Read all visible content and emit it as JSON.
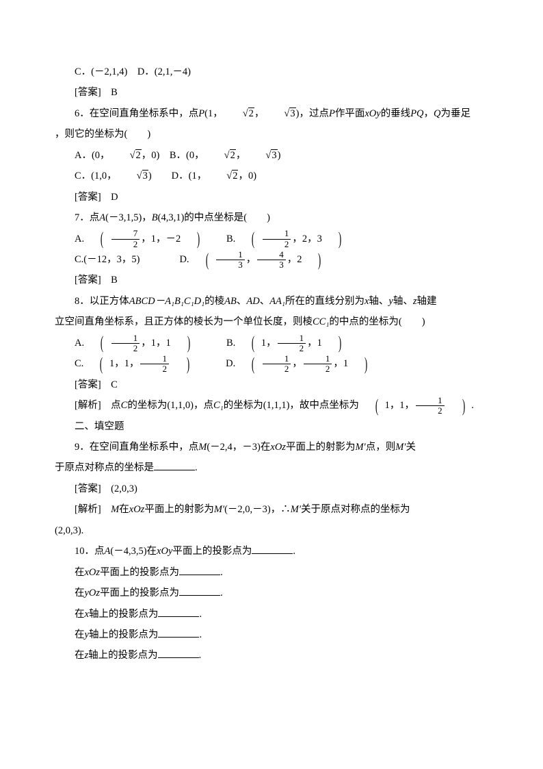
{
  "lines": {
    "l1": "C．(－2,1,4)　D．(2,1,－4)",
    "l2": "[答案]　B",
    "q6_stem_a": "6．在空间直角坐标系中，点",
    "q6_P": "P",
    "q6_stem_b": "(1，",
    "q6_sqrt2": "2",
    "q6_stem_c": "，",
    "q6_sqrt3": "3",
    "q6_stem_d": ")，过点",
    "q6_stem_e": "作平面",
    "q6_xoy": "xOy",
    "q6_stem_f": "的垂线",
    "q6_PQ": "PQ",
    "q6_stem_g": "，",
    "q6_Q": "Q",
    "q6_stem_h": "为垂足",
    "q6_tail": "，则它的坐标为(　　)",
    "q6_optA_pre": "A．(0，",
    "q6_optA_mid": "，0)　B．(0，",
    "q6_optA_mid2": "，",
    "q6_optA_end": ")",
    "q6_optC_pre": "C．(1,0，",
    "q6_optC_mid": ")　　D．(1，",
    "q6_optC_end": "，0)",
    "q6_ans": "[答案]　D",
    "q7_stem_a": "7．点",
    "q7_A": "A",
    "q7_stem_b": "(－3,1,5)，",
    "q7_B": "B",
    "q7_stem_c": "(4,3,1)的中点坐标是(　　)",
    "q7_A_pre": "A.",
    "q7_A_f1n": "7",
    "q7_A_f1d": "2",
    "q7_A_mid": "，1，－2",
    "q7_A_b": "　　B.",
    "q7_B_f1n": "1",
    "q7_B_f1d": "2",
    "q7_B_mid": "，2，3",
    "q7_C_pre": "C.(－12，3，5)　　　　D.",
    "q7_D_f1n": "1",
    "q7_D_f1d": "3",
    "q7_D_mid": "，",
    "q7_D_f2n": "4",
    "q7_D_f2d": "3",
    "q7_D_end": "，2",
    "q7_ans": "[答案]　B",
    "q8_stem_a": "8．以正方体",
    "q8_cube": "ABCD－A₁B₁C₁D₁",
    "q8_stem_b": "的棱",
    "q8_AB": "AB",
    "q8_sep": "、",
    "q8_AD": "AD",
    "q8_AA1": "AA₁",
    "q8_stem_c": "所在的直线分别为",
    "q8_x": "x",
    "q8_stem_d": "轴、",
    "q8_y": "y",
    "q8_stem_e": "轴、",
    "q8_z": "z",
    "q8_stem_f": "轴建",
    "q8_line2a": "立空间直角坐标系，且正方体的棱长为一个单位长度，则棱",
    "q8_CC1": "CC₁",
    "q8_line2b": "的中点的坐标为(　　)",
    "q8_A_pre": "A.",
    "q8_A_f1n": "1",
    "q8_A_f1d": "2",
    "q8_A_mid": "，1，1",
    "q8_B_pre": "　　　B.",
    "q8_B_mid1": "1，",
    "q8_B_f1n": "1",
    "q8_B_f1d": "2",
    "q8_B_mid2": "，1",
    "q8_C_pre": "C.",
    "q8_C_mid1": "1，1，",
    "q8_C_f1n": "1",
    "q8_C_f1d": "2",
    "q8_D_pre": "　　　D.",
    "q8_D_f1n": "1",
    "q8_D_f1d": "2",
    "q8_D_mid": "，",
    "q8_D_f2n": "1",
    "q8_D_f2d": "2",
    "q8_D_end": "，1",
    "q8_ans": "[答案]　C",
    "q8_expl_a": "[解析]　点",
    "q8_expl_C": "C",
    "q8_expl_b": "的坐标为(1,1,0)，点",
    "q8_expl_C1": "C₁",
    "q8_expl_c": "的坐标为(1,1,1)，故中点坐标为",
    "q8_expl_mid1": "1，1，",
    "q8_expl_fn": "1",
    "q8_expl_fd": "2",
    "q8_expl_end": ".",
    "sec2": "二、填空题",
    "q9_stem_a": "9．在空间直角坐标系中，点",
    "q9_M": "M",
    "q9_stem_b": "(－2,4，－3)在",
    "q9_xoz": "xOz",
    "q9_stem_c": "平面上的射影为",
    "q9_Mp": "M′",
    "q9_stem_d": "点，则",
    "q9_stem_e": "关",
    "q9_line2": "于原点对称点的坐标是",
    "q9_period": ".",
    "q9_ans": "[答案]　(2,0,3)",
    "q9_expl_a": "[解析]　",
    "q9_expl_b": "在",
    "q9_expl_c": "平面上的射影为",
    "q9_expl_d": "(－2,0,－3)，∴",
    "q9_expl_e": "关于原点对称点的坐标为",
    "q9_expl_val": "(2,0,3).",
    "q10_stem_a": "10．点",
    "q10_A": "A",
    "q10_stem_b": "(－4,3,5)在",
    "q10_xoy": "xOy",
    "q10_stem_c": "平面上的投影点为",
    "q10_period": ".",
    "q10_l2a": "在",
    "q10_xoz": "xOz",
    "q10_l2b": "平面上的投影点为",
    "q10_yoz": "yOz",
    "q10_l3b": "平面上的投影点为",
    "q10_l4a": "在",
    "q10_xaxis": "x",
    "q10_l4b": "轴上的投影点为",
    "q10_yaxis": "y",
    "q10_zaxis": "z"
  }
}
